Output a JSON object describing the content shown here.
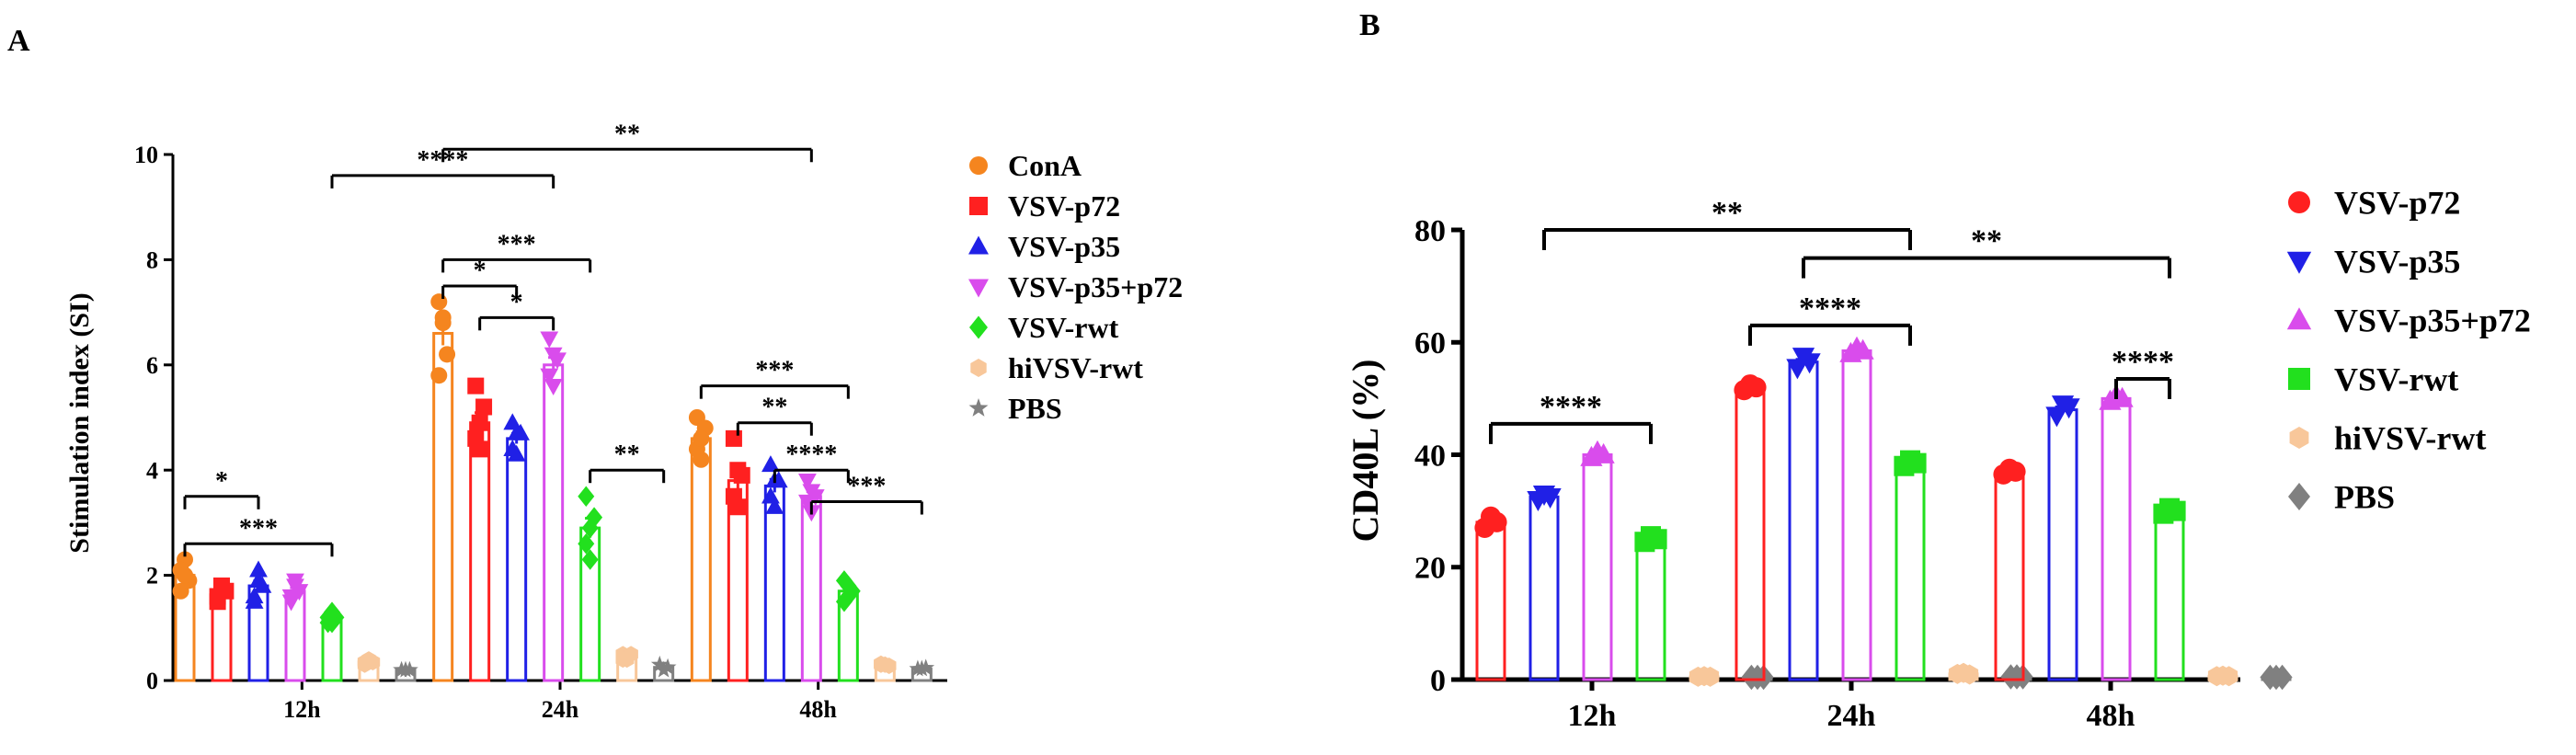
{
  "chart_data": [
    {
      "panel": "A",
      "type": "bar",
      "title": "",
      "xlabel": "",
      "ylabel": "Stimulation index (SI)",
      "ylim": [
        0,
        10
      ],
      "yticks": [
        "0",
        "2",
        "4",
        "6",
        "8",
        "10"
      ],
      "categories": [
        "12h",
        "24h",
        "48h"
      ],
      "series": [
        {
          "name": "ConA",
          "marker": "circle",
          "color": "#f5851f",
          "values": [
            2.0,
            6.6,
            4.6
          ],
          "points": [
            [
              1.7,
              2.3,
              1.9,
              2.1,
              2.0
            ],
            [
              7.2,
              6.8,
              6.2,
              5.8,
              6.9
            ],
            [
              5.0,
              4.2,
              4.8,
              4.4,
              4.6
            ]
          ]
        },
        {
          "name": "VSV-p72",
          "marker": "square",
          "color": "#ff2020",
          "values": [
            1.7,
            4.9,
            3.8
          ],
          "points": [
            [
              1.6,
              1.8,
              1.7,
              1.5,
              1.8
            ],
            [
              5.6,
              4.4,
              5.2,
              4.6,
              4.9
            ],
            [
              4.6,
              3.3,
              3.9,
              3.5,
              4.0
            ]
          ]
        },
        {
          "name": "VSV-p35",
          "marker": "triangle-up",
          "color": "#2020e6",
          "values": [
            1.8,
            4.6,
            3.7
          ],
          "points": [
            [
              1.5,
              2.1,
              1.8,
              1.6,
              1.9
            ],
            [
              4.9,
              4.3,
              4.7,
              4.4,
              4.7
            ],
            [
              4.1,
              3.3,
              3.8,
              3.5,
              3.8
            ]
          ]
        },
        {
          "name": "VSV-p35+p72",
          "marker": "triangle-down",
          "color": "#d94cec",
          "values": [
            1.7,
            6.0,
            3.5
          ],
          "points": [
            [
              1.5,
              1.9,
              1.7,
              1.6,
              1.8
            ],
            [
              6.5,
              5.6,
              6.1,
              5.8,
              6.2
            ],
            [
              3.8,
              3.2,
              3.5,
              3.4,
              3.6
            ]
          ]
        },
        {
          "name": "VSV-rwt",
          "marker": "diamond",
          "color": "#22e01e",
          "values": [
            1.2,
            2.9,
            1.7
          ],
          "points": [
            [
              1.1,
              1.3,
              1.2,
              1.2,
              1.1
            ],
            [
              3.5,
              2.3,
              3.1,
              2.6,
              2.9
            ],
            [
              1.9,
              1.6,
              1.7,
              1.5,
              1.8
            ]
          ]
        },
        {
          "name": "hiVSV-rwt",
          "marker": "hexagon",
          "color": "#f8c79a",
          "values": [
            0.35,
            0.45,
            0.3
          ],
          "points": [
            [
              0.3,
              0.4,
              0.35,
              0.35
            ],
            [
              0.5,
              0.4,
              0.5,
              0.4
            ],
            [
              0.3,
              0.3,
              0.28,
              0.32
            ]
          ]
        },
        {
          "name": "PBS",
          "marker": "star",
          "color": "#808080",
          "values": [
            0.2,
            0.25,
            0.22
          ],
          "points": [
            [
              0.2,
              0.2,
              0.2
            ],
            [
              0.3,
              0.2,
              0.25
            ],
            [
              0.22,
              0.22,
              0.24
            ]
          ]
        }
      ],
      "significance": [
        {
          "label": "****",
          "from": "12h:VSV-rwt",
          "to": "24h:VSV-p35+p72",
          "level": 9.6
        },
        {
          "label": "**",
          "from": "24h:ConA",
          "to": "48h:VSV-p35+p72",
          "level": 10.1
        },
        {
          "label": "***",
          "from": "24h:ConA",
          "to": "24h:VSV-rwt",
          "level": 8.0
        },
        {
          "label": "*",
          "from": "24h:ConA",
          "to": "24h:VSV-p35",
          "level": 7.5
        },
        {
          "label": "*",
          "from": "24h:VSV-p72",
          "to": "24h:VSV-p35+p72",
          "level": 6.9
        },
        {
          "label": "**",
          "from": "24h:VSV-rwt",
          "to": "24h:PBS",
          "level": 4.0
        },
        {
          "label": "*",
          "from": "12h:ConA",
          "to": "12h:VSV-p35",
          "level": 3.5
        },
        {
          "label": "***",
          "from": "12h:ConA",
          "to": "12h:VSV-rwt",
          "level": 2.6
        },
        {
          "label": "***",
          "from": "48h:ConA",
          "to": "48h:VSV-rwt",
          "level": 5.6
        },
        {
          "label": "**",
          "from": "48h:VSV-p72",
          "to": "48h:VSV-p35+p72",
          "level": 4.9
        },
        {
          "label": "****",
          "from": "48h:VSV-p35",
          "to": "48h:VSV-rwt",
          "level": 4.0
        },
        {
          "label": "***",
          "from": "48h:VSV-p35+p72",
          "to": "48h:PBS",
          "level": 3.4
        }
      ]
    },
    {
      "panel": "B",
      "type": "bar",
      "title": "",
      "xlabel": "",
      "ylabel": "CD40L (%)",
      "ylim": [
        0,
        80
      ],
      "yticks": [
        "0",
        "20",
        "40",
        "60",
        "80"
      ],
      "categories": [
        "12h",
        "24h",
        "48h"
      ],
      "series": [
        {
          "name": "VSV-p72",
          "marker": "circle",
          "color": "#ff2020",
          "values": [
            28,
            52,
            37
          ],
          "points": [
            [
              27,
              29,
              28
            ],
            [
              51.5,
              52.5,
              52
            ],
            [
              36.5,
              37.5,
              37
            ]
          ]
        },
        {
          "name": "VSV-p35",
          "marker": "triangle-down",
          "color": "#2020e6",
          "values": [
            32.5,
            56.5,
            48
          ],
          "points": [
            [
              32,
              33,
              32.5
            ],
            [
              55.5,
              57.5,
              56.5
            ],
            [
              47,
              49,
              48.5
            ]
          ]
        },
        {
          "name": "VSV-p35+p72",
          "marker": "triangle-up",
          "color": "#d94cec",
          "values": [
            40,
            58.5,
            50
          ],
          "points": [
            [
              39.5,
              40.5,
              40
            ],
            [
              58,
              59,
              58.5
            ],
            [
              49.5,
              50.5,
              50
            ]
          ]
        },
        {
          "name": "VSV-rwt",
          "marker": "square",
          "color": "#22e01e",
          "values": [
            25,
            38.5,
            30
          ],
          "points": [
            [
              24.5,
              25.5,
              25
            ],
            [
              38,
              39,
              38.5
            ],
            [
              29.5,
              30.5,
              30
            ]
          ]
        },
        {
          "name": "hiVSV-rwt",
          "marker": "hexagon",
          "color": "#f8c79a",
          "values": [
            0.5,
            1,
            0.6
          ],
          "points": [
            [
              0.5,
              0.6,
              0.5
            ],
            [
              1,
              1.2,
              0.9
            ],
            [
              0.6,
              0.7,
              0.6
            ]
          ]
        },
        {
          "name": "PBS",
          "marker": "diamond",
          "color": "#808080",
          "values": [
            0.4,
            0.5,
            0.4
          ],
          "points": [
            [
              0.4,
              0.4,
              0.4
            ],
            [
              0.5,
              0.5,
              0.5
            ],
            [
              0.4,
              0.4,
              0.4
            ]
          ]
        }
      ],
      "significance": [
        {
          "label": "**",
          "from": "12h:VSV-p35",
          "to": "24h:VSV-rwt",
          "level": 80
        },
        {
          "label": "**",
          "from": "24h:VSV-p35",
          "to": "48h:VSV-rwt",
          "level": 75
        },
        {
          "label": "****",
          "from": "12h:VSV-p72",
          "to": "12h:VSV-rwt",
          "level": 45.5
        },
        {
          "label": "****",
          "from": "24h:VSV-p72",
          "to": "24h:VSV-rwt",
          "level": 63
        },
        {
          "label": "****",
          "from": "48h:VSV-p35+p72",
          "to": "48h:VSV-rwt",
          "level": 53.5
        }
      ]
    }
  ]
}
